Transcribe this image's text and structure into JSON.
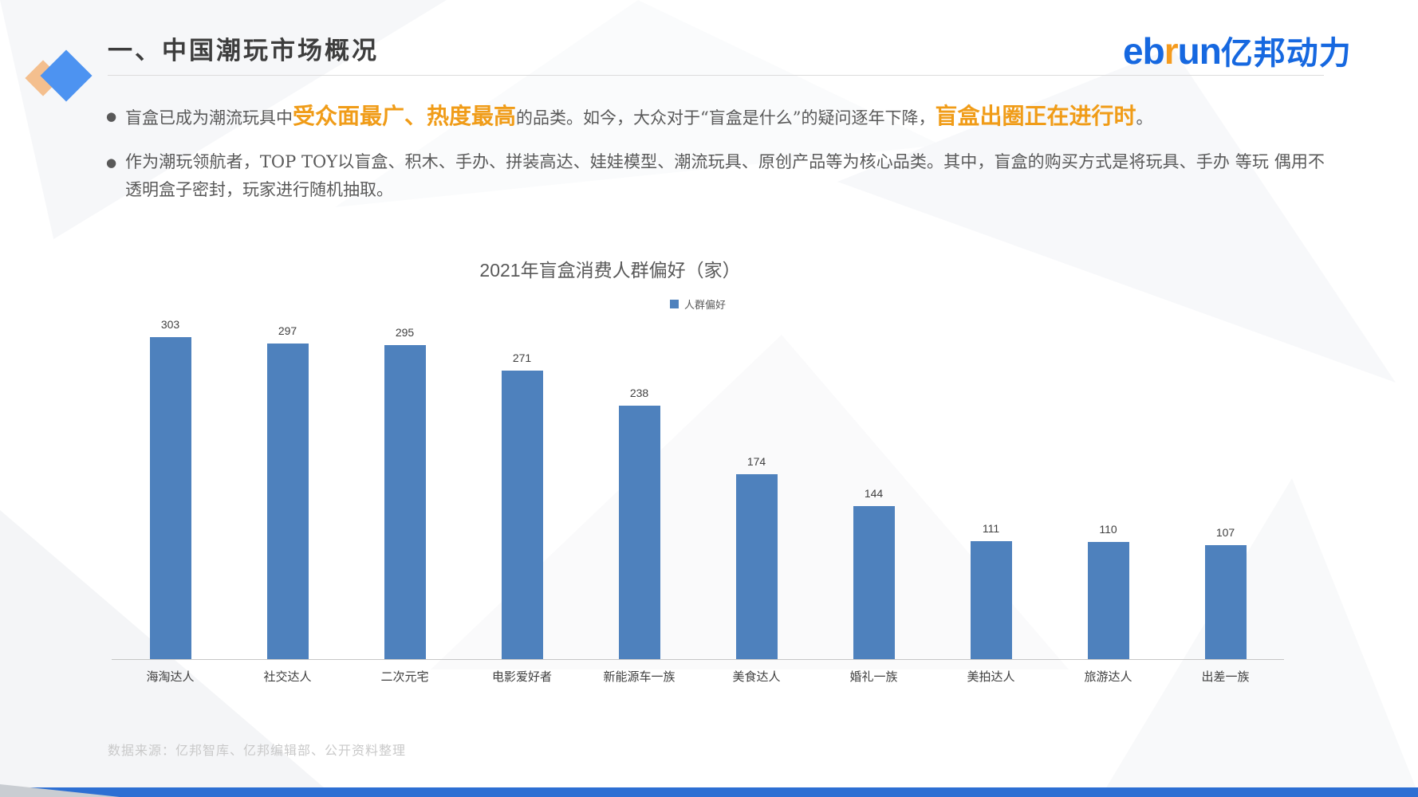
{
  "header": {
    "title": "一、中国潮玩市场概况",
    "logo": {
      "eb": "eb",
      "r": "r",
      "un": "un",
      "cn": "亿邦动力"
    }
  },
  "bullets": [
    {
      "segments": [
        {
          "text": "盲盒已成为潮流玩具中",
          "style": "normal"
        },
        {
          "text": "受众面最广、热度最高",
          "style": "highlight"
        },
        {
          "text": "的品类。如今，大众对于“盲盒是什么”的疑问逐年下降，",
          "style": "normal"
        },
        {
          "text": "盲盒出圈正在进行时",
          "style": "highlight"
        },
        {
          "text": "。",
          "style": "normal"
        }
      ]
    },
    {
      "segments": [
        {
          "text": "作为潮玩领航者，TOP TOY以盲盒、积木、手办、拼装高达、娃娃模型、潮流玩具、原创产品等为核心品类。其中，盲盒的购买方式是将玩具、手办 等玩 偶用不透明盒子密封，玩家进行随机抽取。",
          "style": "normal"
        }
      ]
    }
  ],
  "chart_data": {
    "type": "bar",
    "title": "2021年盲盒消费人群偏好（家）",
    "legend": [
      "人群偏好"
    ],
    "legend_position": "top-center",
    "grid": false,
    "categories": [
      "海淘达人",
      "社交达人",
      "二次元宅",
      "电影爱好者",
      "新能源车一族",
      "美食达人",
      "婚礼一族",
      "美拍达人",
      "旅游达人",
      "出差一族"
    ],
    "series": [
      {
        "name": "人群偏好",
        "values": [
          303,
          297,
          295,
          271,
          238,
          174,
          144,
          111,
          110,
          107
        ]
      }
    ],
    "ylim": [
      0,
      320
    ],
    "xlabel": "",
    "ylabel": "",
    "data_labels": true
  },
  "footer": {
    "source": "数据来源：亿邦智库、亿邦编辑部、公开资料整理"
  },
  "colors": {
    "accent-orange": "#F09C18",
    "bar-blue": "#4E81BD",
    "logo-blue": "#1668E0",
    "logo-orange": "#F59B1E",
    "diamond-orange": "#F4BF8E",
    "diamond-blue": "#4D93F1",
    "bottom-bar": "#2D6FD3"
  }
}
